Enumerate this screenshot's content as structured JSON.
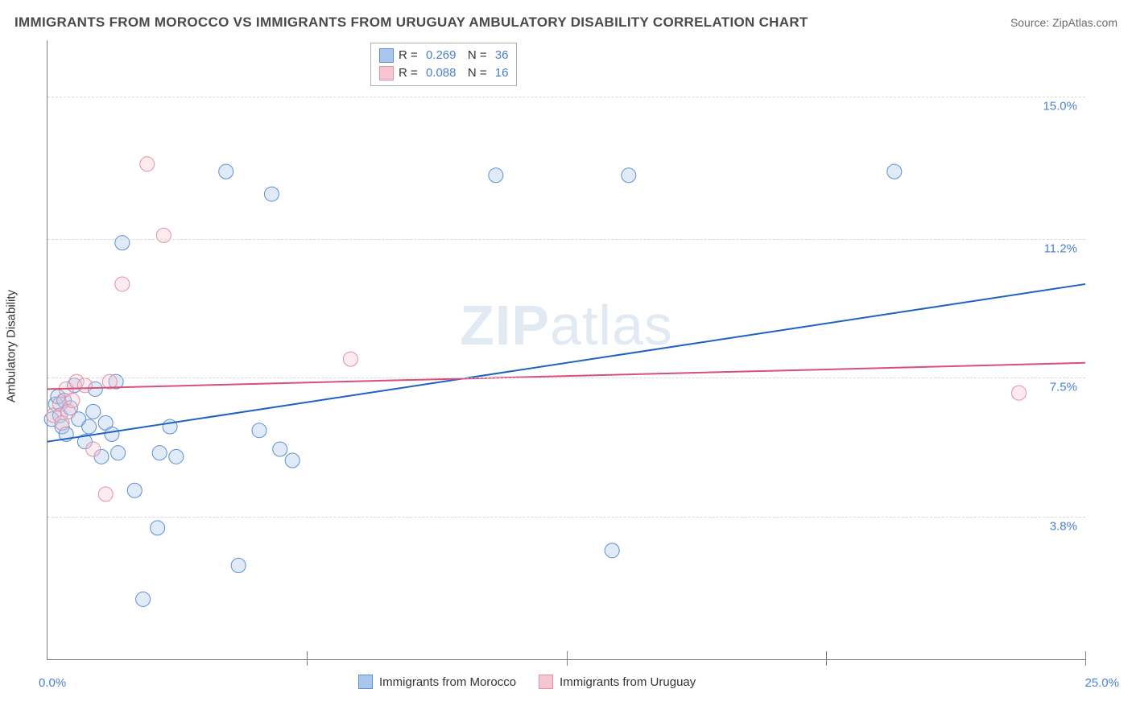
{
  "header": {
    "title": "IMMIGRANTS FROM MOROCCO VS IMMIGRANTS FROM URUGUAY AMBULATORY DISABILITY CORRELATION CHART",
    "source_prefix": "Source: ",
    "source_name": "ZipAtlas.com"
  },
  "chart": {
    "type": "scatter",
    "background_color": "#ffffff",
    "grid_color": "#d8d8d8",
    "axis_color": "#808080",
    "title_fontsize": 17,
    "label_fontsize": 15,
    "tick_fontsize": 15,
    "tick_color": "#4a7fd6",
    "ylabel": "Ambulatory Disability",
    "xlim": [
      0,
      25
    ],
    "ylim": [
      0,
      16.5
    ],
    "yticks": [
      {
        "value": 3.8,
        "label": "3.8%"
      },
      {
        "value": 7.5,
        "label": "7.5%"
      },
      {
        "value": 11.2,
        "label": "11.2%"
      },
      {
        "value": 15.0,
        "label": "15.0%"
      }
    ],
    "xticks_major": [
      6.25,
      12.5,
      18.75,
      25
    ],
    "x_extent_labels": {
      "min": "0.0%",
      "max": "25.0%"
    },
    "marker_radius": 9,
    "marker_fill_opacity": 0.35,
    "marker_stroke_width": 1,
    "line_width": 2,
    "watermark": "ZIPatlas",
    "series": [
      {
        "name": "Immigrants from Morocco",
        "color_fill": "#a9c6ec",
        "color_stroke": "#5a8fd6",
        "line_color": "#1b62c4",
        "r_value": "0.269",
        "n_value": "36",
        "trend": {
          "x1": 0,
          "y1": 5.8,
          "x2": 25,
          "y2": 10.0
        },
        "points": [
          {
            "x": 0.1,
            "y": 6.4
          },
          {
            "x": 0.2,
            "y": 6.8
          },
          {
            "x": 0.25,
            "y": 7.0
          },
          {
            "x": 0.3,
            "y": 6.5
          },
          {
            "x": 0.35,
            "y": 6.2
          },
          {
            "x": 0.4,
            "y": 6.9
          },
          {
            "x": 0.45,
            "y": 6.0
          },
          {
            "x": 0.55,
            "y": 6.7
          },
          {
            "x": 0.65,
            "y": 7.3
          },
          {
            "x": 0.75,
            "y": 6.4
          },
          {
            "x": 0.9,
            "y": 5.8
          },
          {
            "x": 1.0,
            "y": 6.2
          },
          {
            "x": 1.1,
            "y": 6.6
          },
          {
            "x": 1.15,
            "y": 7.2
          },
          {
            "x": 1.3,
            "y": 5.4
          },
          {
            "x": 1.4,
            "y": 6.3
          },
          {
            "x": 1.55,
            "y": 6.0
          },
          {
            "x": 1.65,
            "y": 7.4
          },
          {
            "x": 1.7,
            "y": 5.5
          },
          {
            "x": 1.8,
            "y": 11.1
          },
          {
            "x": 2.1,
            "y": 4.5
          },
          {
            "x": 2.3,
            "y": 1.6
          },
          {
            "x": 2.65,
            "y": 3.5
          },
          {
            "x": 2.7,
            "y": 5.5
          },
          {
            "x": 2.95,
            "y": 6.2
          },
          {
            "x": 3.1,
            "y": 5.4
          },
          {
            "x": 4.3,
            "y": 13.0
          },
          {
            "x": 4.6,
            "y": 2.5
          },
          {
            "x": 5.1,
            "y": 6.1
          },
          {
            "x": 5.4,
            "y": 12.4
          },
          {
            "x": 5.6,
            "y": 5.6
          },
          {
            "x": 5.9,
            "y": 5.3
          },
          {
            "x": 10.8,
            "y": 12.9
          },
          {
            "x": 13.6,
            "y": 2.9
          },
          {
            "x": 14.0,
            "y": 12.9
          },
          {
            "x": 20.4,
            "y": 13.0
          }
        ]
      },
      {
        "name": "Immigrants from Uruguay",
        "color_fill": "#f5c6d1",
        "color_stroke": "#e38fa6",
        "line_color": "#d94f78",
        "r_value": "0.088",
        "n_value": "16",
        "trend": {
          "x1": 0,
          "y1": 7.2,
          "x2": 25,
          "y2": 7.9
        },
        "points": [
          {
            "x": 0.15,
            "y": 6.5
          },
          {
            "x": 0.3,
            "y": 6.8
          },
          {
            "x": 0.35,
            "y": 6.3
          },
          {
            "x": 0.45,
            "y": 7.2
          },
          {
            "x": 0.5,
            "y": 6.6
          },
          {
            "x": 0.7,
            "y": 7.4
          },
          {
            "x": 0.9,
            "y": 7.3
          },
          {
            "x": 1.1,
            "y": 5.6
          },
          {
            "x": 1.4,
            "y": 4.4
          },
          {
            "x": 1.5,
            "y": 7.4
          },
          {
            "x": 1.8,
            "y": 10.0
          },
          {
            "x": 2.4,
            "y": 13.2
          },
          {
            "x": 2.8,
            "y": 11.3
          },
          {
            "x": 7.3,
            "y": 8.0
          },
          {
            "x": 23.4,
            "y": 7.1
          },
          {
            "x": 0.6,
            "y": 6.9
          }
        ]
      }
    ],
    "legend_bottom": [
      {
        "label": "Immigrants from Morocco",
        "swatch_fill": "#a9c6ec",
        "swatch_stroke": "#5a8fd6"
      },
      {
        "label": "Immigrants from Uruguay",
        "swatch_fill": "#f5c6d1",
        "swatch_stroke": "#e38fa6"
      }
    ]
  }
}
